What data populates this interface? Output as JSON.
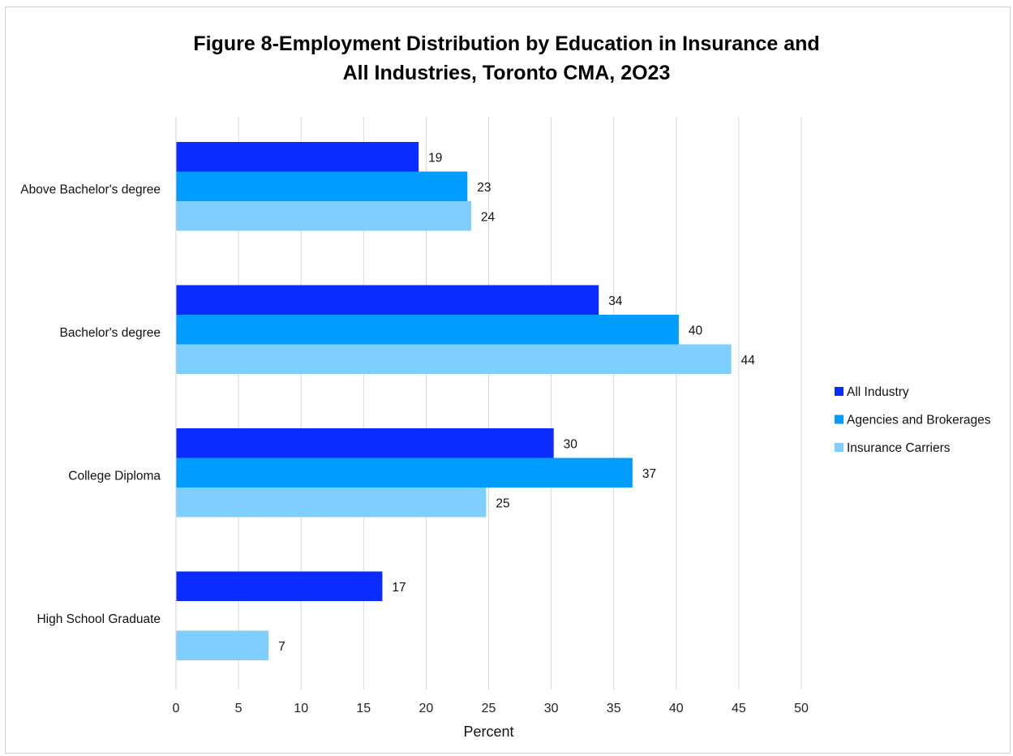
{
  "chart_data": {
    "type": "bar",
    "orientation": "horizontal",
    "title_line1": "Figure 8-Employment Distribution by Education in Insurance and",
    "title_line2": "All Industries, Toronto CMA, 2O23",
    "xlabel": "Percent",
    "ylabel": "",
    "xlim": [
      0,
      50
    ],
    "xticks": [
      0,
      5,
      10,
      15,
      20,
      25,
      30,
      35,
      40,
      45,
      50
    ],
    "grid": true,
    "legend_position": "right",
    "categories": [
      "Above Bachelor's degree",
      "Bachelor's degree",
      "College Diploma",
      "High School Graduate"
    ],
    "series": [
      {
        "name": "All Industry",
        "color": "#0a2cff",
        "values": [
          19.4,
          33.8,
          30.2,
          16.5
        ],
        "labels": [
          "19",
          "34",
          "30",
          "17"
        ]
      },
      {
        "name": "Agencies and Brokerages",
        "color": "#009cff",
        "values": [
          23.3,
          40.2,
          36.5,
          null
        ],
        "labels": [
          "23",
          "40",
          "37",
          ""
        ]
      },
      {
        "name": "Insurance Carriers",
        "color": "#7ecfff",
        "values": [
          23.6,
          44.4,
          24.8,
          7.4
        ],
        "labels": [
          "24",
          "44",
          "25",
          "7"
        ]
      }
    ]
  }
}
